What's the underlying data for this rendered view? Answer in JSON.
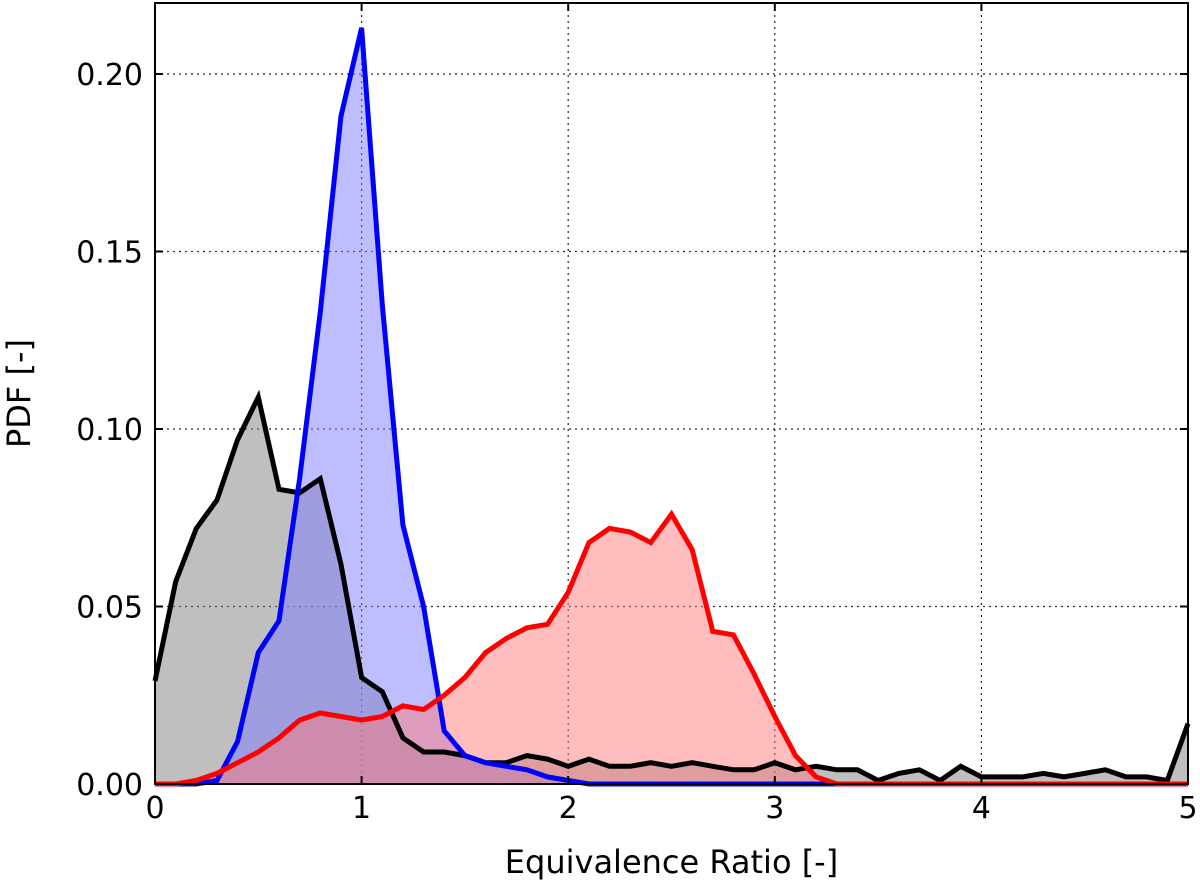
{
  "chart_data": {
    "type": "area",
    "title": "",
    "xlabel": "Equivalence Ratio [-]",
    "ylabel": "PDF [-]",
    "xlim": [
      0,
      5
    ],
    "ylim": [
      0,
      0.22
    ],
    "xticks": [
      0,
      1,
      2,
      3,
      4,
      5
    ],
    "xtick_labels": [
      "0",
      "1",
      "2",
      "3",
      "4",
      "5"
    ],
    "yticks": [
      0.0,
      0.05,
      0.1,
      0.15,
      0.2
    ],
    "ytick_labels": [
      "0.00",
      "0.05",
      "0.10",
      "0.15",
      "0.20"
    ],
    "grid": true,
    "legend": "none",
    "series": [
      {
        "color": "#000000",
        "fill": "#808080",
        "fill_opacity": 0.5,
        "x": [
          0.0,
          0.1,
          0.2,
          0.3,
          0.4,
          0.5,
          0.6,
          0.7,
          0.8,
          0.9,
          1.0,
          1.1,
          1.2,
          1.3,
          1.4,
          1.5,
          1.6,
          1.7,
          1.8,
          1.9,
          2.0,
          2.1,
          2.2,
          2.3,
          2.4,
          2.5,
          2.6,
          2.7,
          2.8,
          2.9,
          3.0,
          3.1,
          3.2,
          3.3,
          3.4,
          3.5,
          3.6,
          3.7,
          3.8,
          3.9,
          4.0,
          4.1,
          4.2,
          4.3,
          4.4,
          4.5,
          4.6,
          4.7,
          4.8,
          4.9,
          5.0
        ],
        "values": [
          0.029,
          0.057,
          0.072,
          0.08,
          0.097,
          0.109,
          0.083,
          0.082,
          0.086,
          0.062,
          0.03,
          0.026,
          0.013,
          0.009,
          0.009,
          0.008,
          0.006,
          0.006,
          0.008,
          0.007,
          0.005,
          0.007,
          0.005,
          0.005,
          0.006,
          0.005,
          0.006,
          0.005,
          0.004,
          0.004,
          0.006,
          0.004,
          0.005,
          0.004,
          0.004,
          0.001,
          0.003,
          0.004,
          0.001,
          0.005,
          0.002,
          0.002,
          0.002,
          0.003,
          0.002,
          0.003,
          0.004,
          0.002,
          0.002,
          0.001,
          0.017
        ]
      },
      {
        "color": "#0000ff",
        "fill": "#7b7bff",
        "fill_opacity": 0.5,
        "x": [
          0.0,
          0.1,
          0.2,
          0.3,
          0.4,
          0.5,
          0.6,
          0.7,
          0.8,
          0.9,
          1.0,
          1.1,
          1.2,
          1.3,
          1.4,
          1.5,
          1.6,
          1.7,
          1.8,
          1.9,
          2.0,
          2.1,
          2.2,
          2.5,
          3.0,
          4.0,
          5.0
        ],
        "values": [
          0.0,
          0.0,
          0.0,
          0.001,
          0.012,
          0.037,
          0.046,
          0.086,
          0.133,
          0.188,
          0.213,
          0.135,
          0.073,
          0.05,
          0.015,
          0.008,
          0.006,
          0.005,
          0.004,
          0.002,
          0.001,
          0.0,
          0.0,
          0.0,
          0.0,
          0.0,
          0.0
        ]
      },
      {
        "color": "#ff0000",
        "fill": "#ff7b7b",
        "fill_opacity": 0.5,
        "x": [
          0.0,
          0.1,
          0.2,
          0.3,
          0.4,
          0.5,
          0.6,
          0.7,
          0.8,
          0.9,
          1.0,
          1.1,
          1.2,
          1.3,
          1.4,
          1.5,
          1.6,
          1.7,
          1.8,
          1.9,
          2.0,
          2.1,
          2.2,
          2.3,
          2.4,
          2.5,
          2.6,
          2.7,
          2.8,
          2.9,
          3.0,
          3.1,
          3.2,
          3.3,
          3.5,
          4.0,
          5.0
        ],
        "values": [
          0.0,
          0.0,
          0.001,
          0.003,
          0.006,
          0.009,
          0.013,
          0.018,
          0.02,
          0.019,
          0.018,
          0.019,
          0.022,
          0.021,
          0.025,
          0.03,
          0.037,
          0.041,
          0.044,
          0.045,
          0.054,
          0.068,
          0.072,
          0.071,
          0.068,
          0.076,
          0.066,
          0.043,
          0.042,
          0.031,
          0.019,
          0.008,
          0.002,
          0.0,
          0.0,
          0.0,
          0.0
        ]
      }
    ]
  }
}
